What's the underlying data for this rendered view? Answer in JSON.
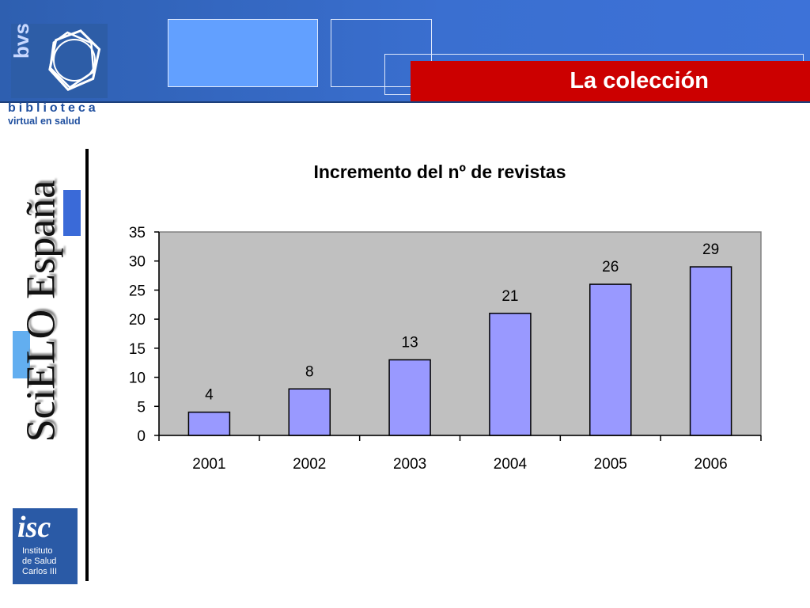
{
  "header": {
    "section_title": "La colección"
  },
  "brand": {
    "bvs_logo_text": "bvs",
    "bvs_line1": "biblioteca",
    "bvs_line2": "virtual en salud",
    "side_title": "SciELO España",
    "isc_mark": "isc",
    "isc_line1": "Instituto",
    "isc_line2": "de Salud",
    "isc_line3": "Carlos III"
  },
  "colors": {
    "header_blue": "#3a6fd0",
    "section_red": "#cc0000",
    "bar_fill": "#9999ff",
    "plot_bg": "#c0c0c0"
  },
  "chart_data": {
    "type": "bar",
    "title": "Incremento del nº de revistas",
    "xlabel": "",
    "ylabel": "",
    "categories": [
      "2001",
      "2002",
      "2003",
      "2004",
      "2005",
      "2006"
    ],
    "values": [
      4,
      8,
      13,
      21,
      26,
      29
    ],
    "data_labels": [
      "4",
      "8",
      "13",
      "21",
      "26",
      "29"
    ],
    "ylim": [
      0,
      35
    ],
    "yticks": [
      "0",
      "5",
      "10",
      "15",
      "20",
      "25",
      "30",
      "35"
    ],
    "grid": false,
    "legend": "none"
  }
}
